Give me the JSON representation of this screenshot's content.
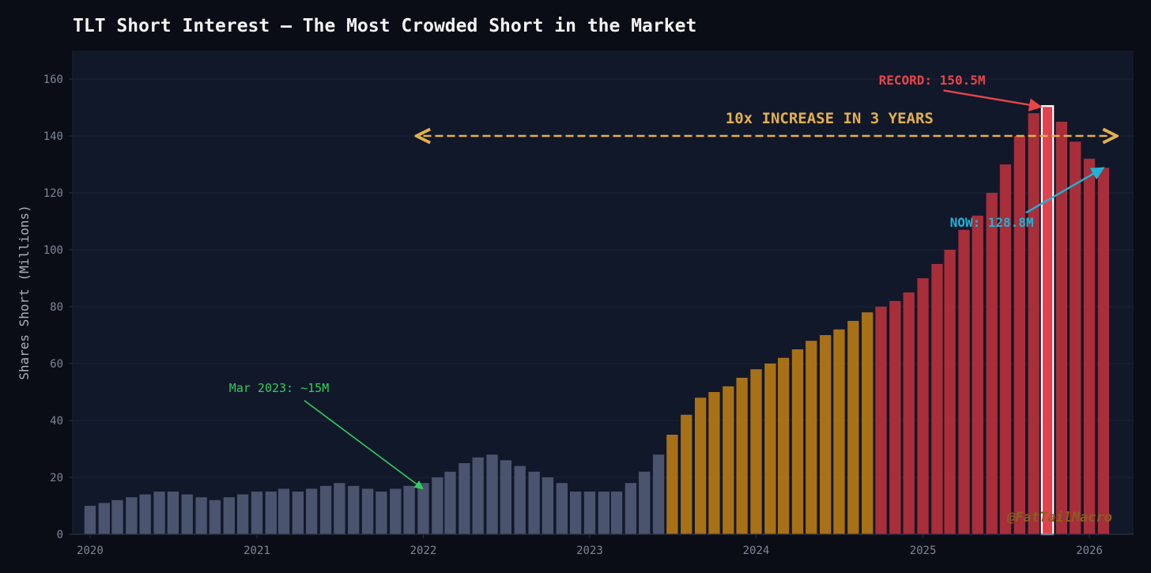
{
  "colors": {
    "background": "#0a0d15",
    "plot_background": "#11182a",
    "grid": "#1c2436",
    "axis_text": "#7d8699",
    "title_text": "#f2f2f2",
    "pre_2023": "#4f5a74",
    "build_up": "#b57a16",
    "red_zone": "#b5313c",
    "record_fill": "#e3424d",
    "record_outline": "#ffffff",
    "record_annotation": "#e8454a",
    "now_annotation": "#1fb3d6",
    "span_annotation": "#e3b04e",
    "low_annotation": "#2ed05c",
    "watermark": "#8a5e20"
  },
  "chart_data": {
    "type": "bar",
    "title": "TLT Short Interest — The Most Crowded Short in the Market",
    "xlabel": "",
    "ylabel": "Shares Short (Millions)",
    "ylim": [
      0,
      170
    ],
    "xlim": [
      "2019-11-24",
      "2026-04-08"
    ],
    "yticks": [
      0,
      20,
      40,
      60,
      80,
      100,
      120,
      140,
      160
    ],
    "xticks": [
      "2020",
      "2021",
      "2022",
      "2023",
      "2024",
      "2025",
      "2026"
    ],
    "grid": true,
    "legend": "none",
    "series": [
      {
        "x": [
          "2020-01",
          "2020-02",
          "2020-03",
          "2020-04",
          "2020-05",
          "2020-06",
          "2020-07",
          "2020-08",
          "2020-09",
          "2020-10",
          "2020-11",
          "2020-12",
          "2021-01",
          "2021-02",
          "2021-03",
          "2021-04",
          "2021-05",
          "2021-06",
          "2021-07",
          "2021-08",
          "2021-09",
          "2021-10",
          "2021-11",
          "2021-12",
          "2022-01",
          "2022-02",
          "2022-03",
          "2022-04",
          "2022-05",
          "2022-06",
          "2022-07",
          "2022-08",
          "2022-09",
          "2022-10",
          "2022-11",
          "2022-12",
          "2023-01",
          "2023-02",
          "2023-03",
          "2023-04",
          "2023-05",
          "2023-06",
          "2023-07",
          "2023-08",
          "2023-09",
          "2023-10",
          "2023-11",
          "2023-12",
          "2024-01",
          "2024-02",
          "2024-03",
          "2024-04",
          "2024-05",
          "2024-06",
          "2024-07",
          "2024-08",
          "2024-09",
          "2024-10",
          "2024-11",
          "2024-12",
          "2025-01",
          "2025-02",
          "2025-03",
          "2025-04",
          "2025-05",
          "2025-06",
          "2025-07",
          "2025-08",
          "2025-09",
          "2025-10",
          "2025-11",
          "2025-12",
          "2026-01",
          "2026-02"
        ],
        "values": [
          10,
          11,
          12,
          13,
          14,
          15,
          15,
          14,
          13,
          12,
          13,
          14,
          15,
          15,
          16,
          15,
          16,
          17,
          18,
          17,
          16,
          15,
          16,
          17,
          18,
          20,
          22,
          25,
          27,
          28,
          26,
          24,
          22,
          20,
          18,
          15,
          15,
          15,
          15,
          18,
          22,
          28,
          35,
          42,
          48,
          50,
          52,
          55,
          58,
          60,
          62,
          65,
          68,
          70,
          72,
          75,
          78,
          80,
          82,
          85,
          90,
          95,
          100,
          107,
          112,
          120,
          130,
          140,
          148,
          150.5,
          145,
          138,
          132,
          128.8
        ],
        "color_groups": [
          {
            "from": "2020-01",
            "to": "2023-06",
            "color_key": "pre_2023"
          },
          {
            "from": "2023-07",
            "to": "2024-09",
            "color_key": "build_up"
          },
          {
            "from": "2024-10",
            "to": "2026-02",
            "color_key": "red_zone"
          }
        ],
        "highlight": {
          "x": "2025-10",
          "color_key": "record_fill"
        }
      }
    ],
    "annotations": [
      {
        "id": "record",
        "text": "RECORD: 150.5M",
        "text_x": "2024-09-26",
        "text_y": 158,
        "arrow_to_x": "2025-10",
        "arrow_to_y": 150.5,
        "color_key": "record_annotation"
      },
      {
        "id": "span",
        "text": "10x INCREASE IN 3 YEARS",
        "text_x": "2024-06-10",
        "text_y": 145,
        "from_x": "2022-01-01",
        "to_x": "2026-02-15",
        "y": 140,
        "style": "dashed-double-arrow",
        "color_key": "span_annotation"
      },
      {
        "id": "now",
        "text": "NOW: 128.8M",
        "text_x": "2025-03-01",
        "text_y": 108,
        "arrow_from_x": "2025-08-15",
        "arrow_from_y": 113,
        "arrow_to_x": "2026-02",
        "arrow_to_y": 128.8,
        "color_key": "now_annotation"
      },
      {
        "id": "low",
        "text": "Mar 2023: ~15M",
        "text_x": "2020-11-01",
        "text_y": 50,
        "arrow_from_x": "2021-04-15",
        "arrow_from_y": 47,
        "arrow_to_x": "2021-12-31",
        "arrow_to_y": 16,
        "color_key": "low_annotation"
      }
    ],
    "watermark": "@FatTailMacro"
  }
}
